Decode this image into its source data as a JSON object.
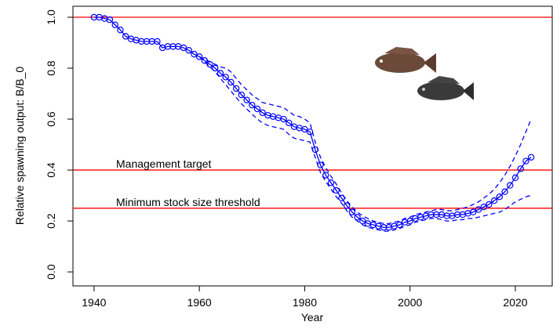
{
  "chart_data": {
    "type": "line",
    "x_label": "Year",
    "y_label": "Relative spawning output: B/B_0",
    "xlim": [
      1936,
      2027
    ],
    "ylim": [
      -0.055,
      1.043
    ],
    "xticks": [
      1940,
      1960,
      1980,
      2000,
      2020
    ],
    "yticks": [
      {
        "value": 0,
        "label": "0.0"
      },
      0.2,
      0.4,
      0.6,
      0.8,
      {
        "value": 1,
        "label": "1.0"
      }
    ],
    "reference_color": "#ff0000",
    "reference_lines": [
      {
        "value": 1
      },
      {
        "value": 0.4,
        "label": "Management target"
      },
      {
        "value": 0.25,
        "label": "Minimum stock size threshold"
      }
    ],
    "x": [
      1940,
      1941,
      1942,
      1943,
      1944,
      1945,
      1946,
      1947,
      1948,
      1949,
      1950,
      1951,
      1952,
      1953,
      1954,
      1955,
      1956,
      1957,
      1958,
      1959,
      1960,
      1961,
      1962,
      1963,
      1964,
      1965,
      1966,
      1967,
      1968,
      1969,
      1970,
      1971,
      1972,
      1973,
      1974,
      1975,
      1976,
      1977,
      1978,
      1979,
      1980,
      1981,
      1982,
      1983,
      1984,
      1985,
      1986,
      1987,
      1988,
      1989,
      1990,
      1991,
      1992,
      1993,
      1994,
      1995,
      1996,
      1997,
      1998,
      1999,
      2000,
      2001,
      2002,
      2003,
      2004,
      2005,
      2006,
      2007,
      2008,
      2009,
      2010,
      2011,
      2012,
      2013,
      2014,
      2015,
      2016,
      2017,
      2018,
      2019,
      2020,
      2021,
      2022,
      2023
    ],
    "series": [
      {
        "color": "#0000ff",
        "style": "markers",
        "values": [
          1,
          1,
          0.995,
          0.99,
          0.97,
          0.95,
          0.925,
          0.915,
          0.91,
          0.905,
          0.905,
          0.905,
          0.905,
          0.88,
          0.885,
          0.885,
          0.885,
          0.88,
          0.87,
          0.855,
          0.845,
          0.83,
          0.815,
          0.8,
          0.78,
          0.765,
          0.745,
          0.72,
          0.695,
          0.675,
          0.655,
          0.64,
          0.625,
          0.615,
          0.61,
          0.605,
          0.6,
          0.585,
          0.57,
          0.565,
          0.56,
          0.55,
          0.48,
          0.42,
          0.38,
          0.35,
          0.32,
          0.29,
          0.26,
          0.235,
          0.215,
          0.2,
          0.19,
          0.185,
          0.18,
          0.175,
          0.175,
          0.18,
          0.185,
          0.195,
          0.2,
          0.21,
          0.215,
          0.22,
          0.225,
          0.225,
          0.225,
          0.22,
          0.22,
          0.225,
          0.225,
          0.23,
          0.235,
          0.245,
          0.255,
          0.265,
          0.28,
          0.295,
          0.315,
          0.34,
          0.37,
          0.405,
          0.435,
          0.45
        ]
      },
      {
        "color": "#0000ff",
        "style": "dashed",
        "values": [
          null,
          null,
          null,
          null,
          null,
          null,
          null,
          null,
          null,
          null,
          null,
          null,
          null,
          null,
          null,
          null,
          null,
          null,
          null,
          null,
          0.845,
          0.835,
          0.825,
          0.815,
          0.805,
          0.8,
          0.785,
          0.76,
          0.735,
          0.715,
          0.695,
          0.68,
          0.665,
          0.66,
          0.655,
          0.65,
          0.645,
          0.63,
          0.615,
          0.61,
          0.6,
          0.585,
          0.51,
          0.45,
          0.41,
          0.375,
          0.345,
          0.31,
          0.28,
          0.255,
          0.235,
          0.22,
          0.21,
          0.2,
          0.195,
          0.19,
          0.19,
          0.195,
          0.2,
          0.21,
          0.215,
          0.225,
          0.23,
          0.235,
          0.24,
          0.245,
          0.245,
          0.24,
          0.24,
          0.245,
          0.25,
          0.255,
          0.265,
          0.275,
          0.29,
          0.305,
          0.325,
          0.35,
          0.38,
          0.415,
          0.455,
          0.5,
          0.55,
          0.6
        ]
      },
      {
        "color": "#0000ff",
        "style": "dashed",
        "values": [
          null,
          null,
          null,
          null,
          null,
          null,
          null,
          null,
          null,
          null,
          null,
          null,
          null,
          null,
          null,
          null,
          null,
          null,
          null,
          null,
          0.845,
          0.825,
          0.805,
          0.785,
          0.76,
          0.735,
          0.71,
          0.685,
          0.66,
          0.64,
          0.62,
          0.6,
          0.585,
          0.575,
          0.57,
          0.565,
          0.56,
          0.54,
          0.525,
          0.52,
          0.515,
          0.51,
          0.45,
          0.39,
          0.355,
          0.325,
          0.295,
          0.27,
          0.24,
          0.215,
          0.2,
          0.185,
          0.175,
          0.17,
          0.165,
          0.16,
          0.16,
          0.165,
          0.17,
          0.18,
          0.185,
          0.195,
          0.2,
          0.205,
          0.21,
          0.21,
          0.205,
          0.2,
          0.2,
          0.205,
          0.205,
          0.21,
          0.21,
          0.215,
          0.22,
          0.225,
          0.23,
          0.235,
          0.245,
          0.26,
          0.275,
          0.285,
          0.295,
          0.3
        ]
      }
    ]
  }
}
